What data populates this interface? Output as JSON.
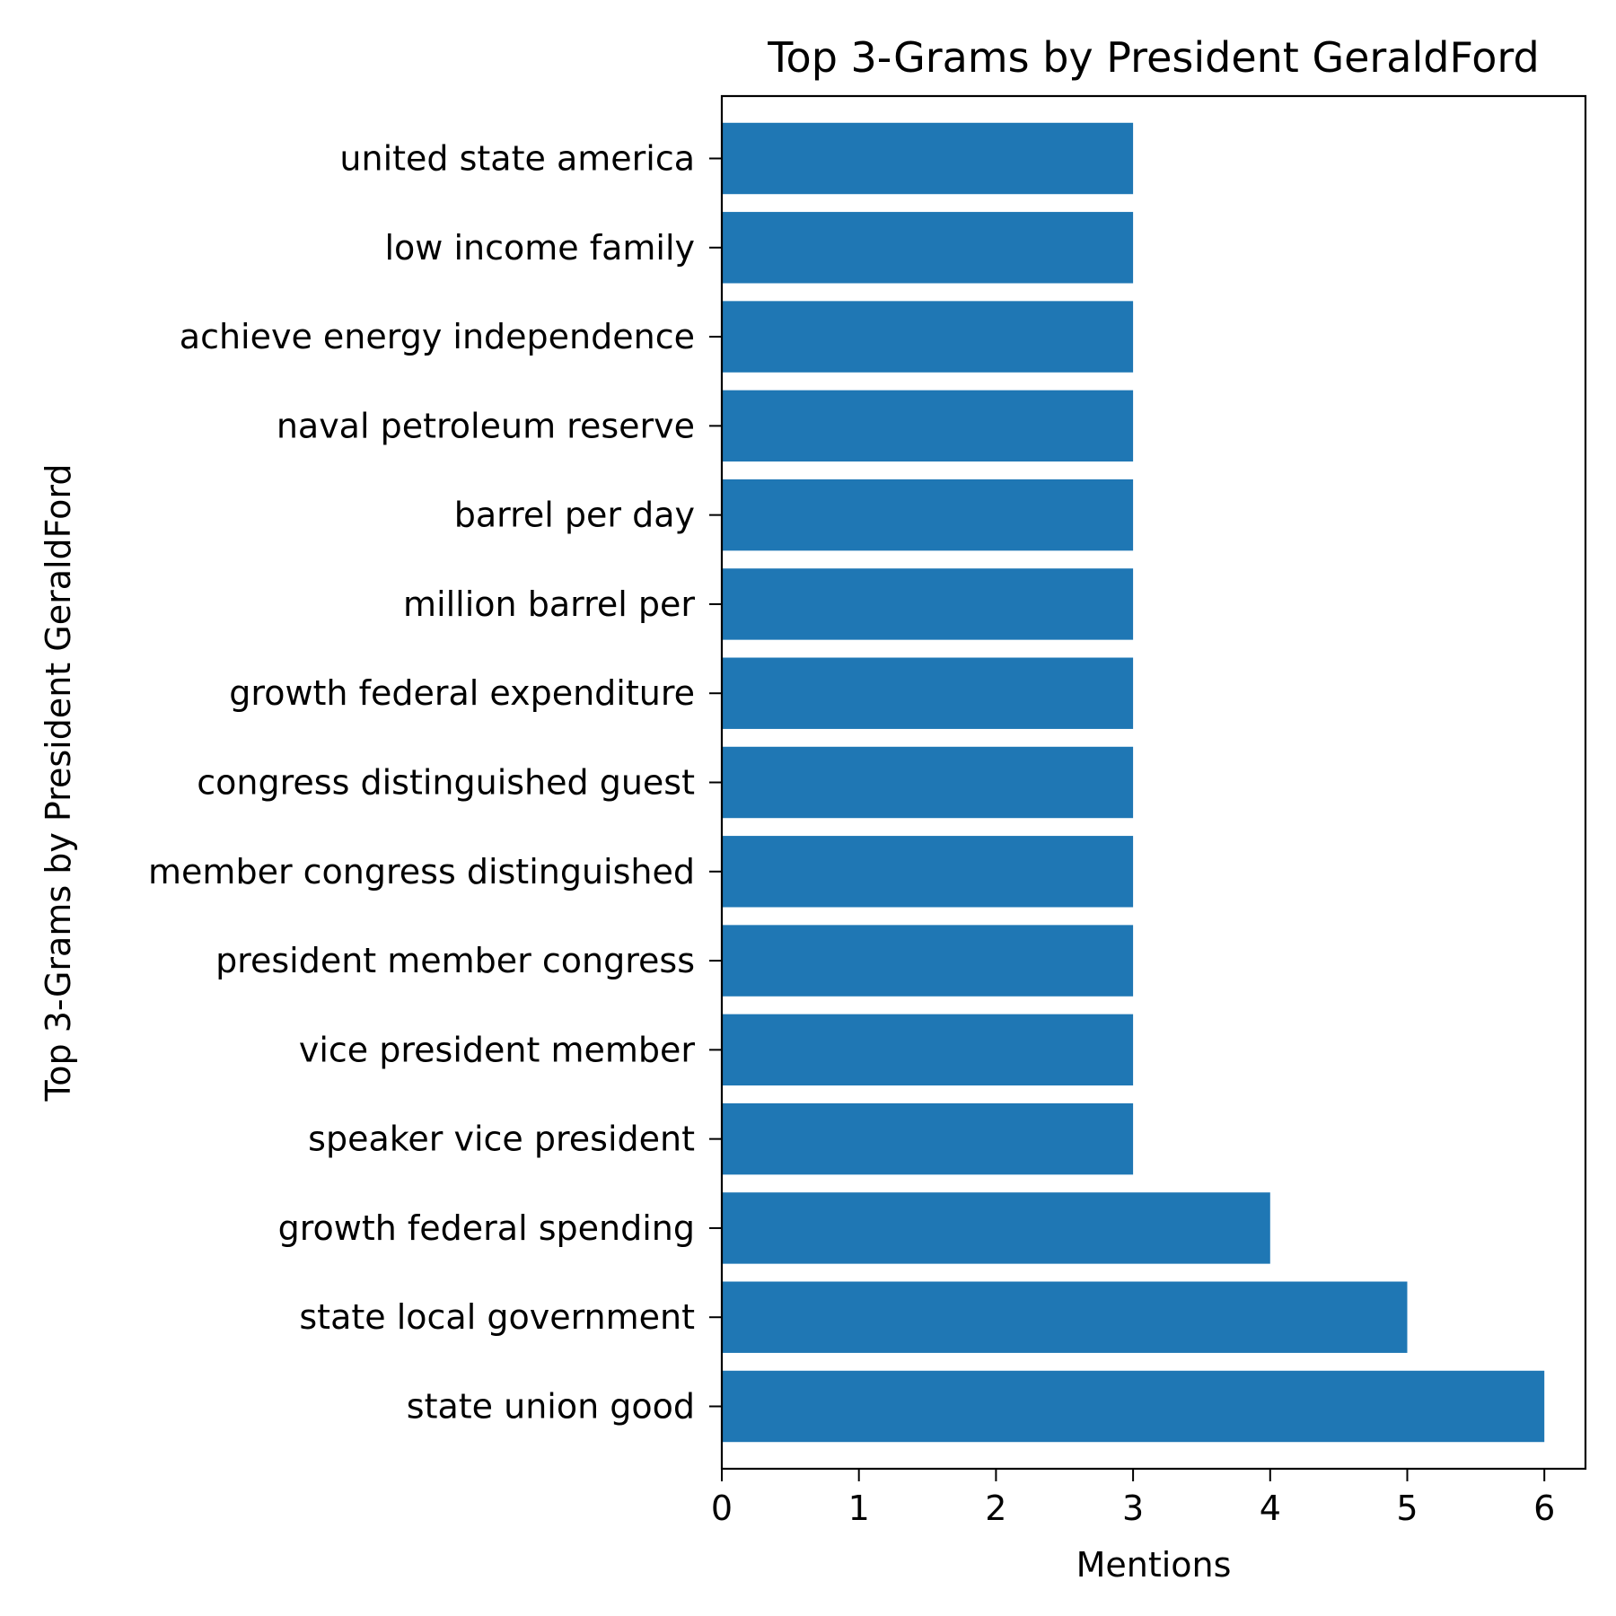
{
  "chart_data": {
    "type": "bar",
    "orientation": "horizontal",
    "title": "Top 3-Grams by President GeraldFord",
    "xlabel": "Mentions",
    "ylabel": "Top 3-Grams by President GeraldFord",
    "xlim": [
      0,
      6.3
    ],
    "xticks": [
      "0",
      "1",
      "2",
      "3",
      "4",
      "5",
      "6"
    ],
    "grid": false,
    "legend": false,
    "bar_color": "#1f77b4",
    "categories": [
      "state union good",
      "state local government",
      "growth federal spending",
      "speaker vice president",
      "vice president member",
      "president member congress",
      "member congress distinguished",
      "congress distinguished guest",
      "growth federal expenditure",
      "million barrel per",
      "barrel per day",
      "naval petroleum reserve",
      "achieve energy independence",
      "low income family",
      "united state america"
    ],
    "values": [
      6,
      5,
      4,
      3,
      3,
      3,
      3,
      3,
      3,
      3,
      3,
      3,
      3,
      3,
      3
    ]
  }
}
